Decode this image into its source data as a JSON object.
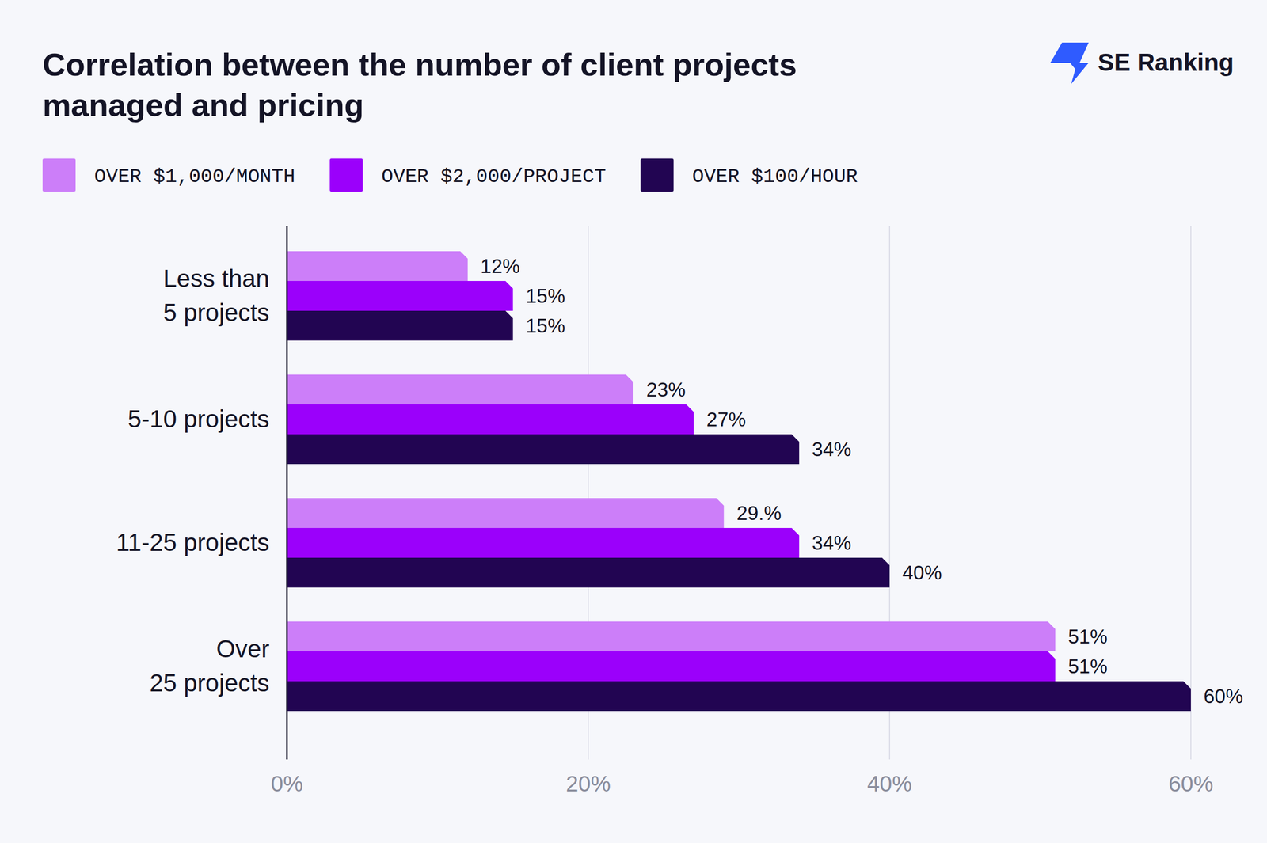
{
  "chart_data": {
    "type": "bar",
    "orientation": "horizontal",
    "title": "Correlation between the number of client projects\nmanaged and pricing",
    "annotation": "SE Ranking",
    "categories": [
      "Less than\n5 projects",
      "5-10 projects",
      "11-25 projects",
      "Over\n25 projects"
    ],
    "series": [
      {
        "name": "OVER $1,000/MONTH",
        "color": "#cc7ef9",
        "values": [
          12,
          23,
          29,
          51
        ],
        "value_labels": [
          "12%",
          "23%",
          "29.%",
          "51%"
        ]
      },
      {
        "name": "OVER $2,000/PROJECT",
        "color": "#9b00fb",
        "values": [
          15,
          27,
          34,
          51
        ],
        "value_labels": [
          "15%",
          "27%",
          "34%",
          "51%"
        ]
      },
      {
        "name": "OVER $100/HOUR",
        "color": "#220552",
        "values": [
          15,
          34,
          40,
          60
        ],
        "value_labels": [
          "15%",
          "34%",
          "40%",
          "60%"
        ]
      }
    ],
    "xlim": [
      0,
      60
    ],
    "xticks": [
      {
        "value": 0,
        "label": "0%"
      },
      {
        "value": 20,
        "label": "20%"
      },
      {
        "value": 40,
        "label": "40%"
      },
      {
        "value": 60,
        "label": "60%"
      }
    ],
    "grid": true,
    "legend": "top",
    "data_labels": true
  }
}
